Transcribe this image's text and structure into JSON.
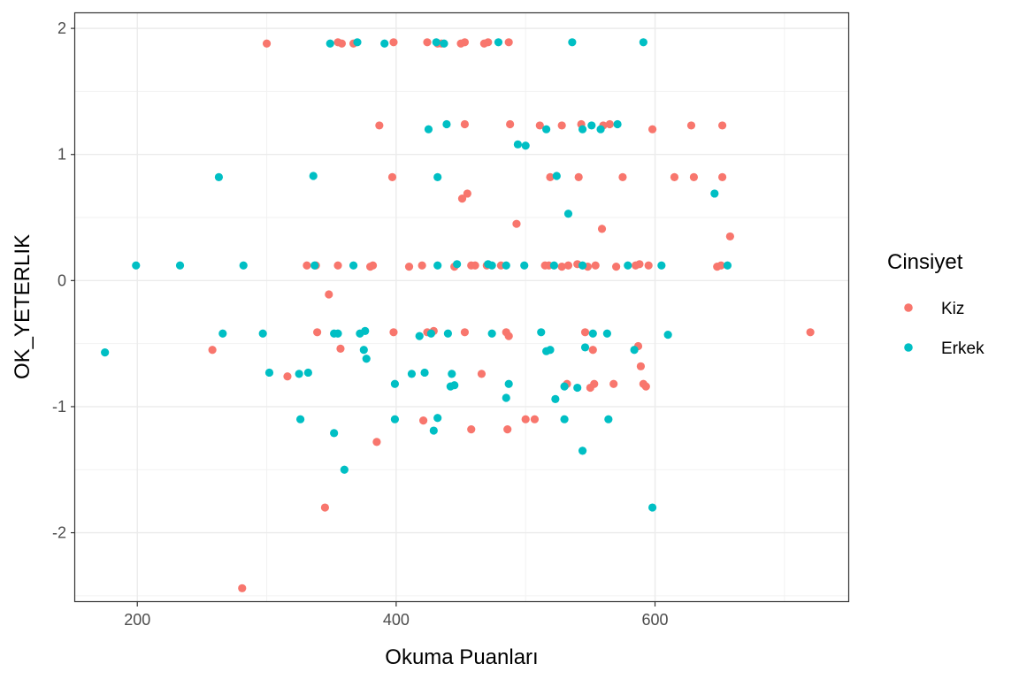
{
  "chart_data": {
    "type": "scatter",
    "title": "",
    "xlabel": "Okuma Puanları",
    "ylabel": "OK_YETERLIK",
    "xlim": [
      152,
      750
    ],
    "ylim": [
      -2.55,
      2.12
    ],
    "x_ticks": [
      200,
      400,
      600
    ],
    "x_tick_labels": [
      "200",
      "400",
      "600"
    ],
    "y_ticks": [
      -2,
      -1,
      0,
      1,
      2
    ],
    "y_tick_labels": [
      "-2",
      "-1",
      "0",
      "1",
      "2"
    ],
    "grid": true,
    "legend_title": "Cinsiyet",
    "legend_position": "right",
    "series": [
      {
        "name": "Kiz",
        "color": "#F8766D",
        "points": [
          [
            300,
            1.88
          ],
          [
            355,
            1.89
          ],
          [
            358,
            1.88
          ],
          [
            367,
            1.88
          ],
          [
            398,
            1.89
          ],
          [
            424,
            1.89
          ],
          [
            432,
            1.88
          ],
          [
            435,
            1.88
          ],
          [
            450,
            1.88
          ],
          [
            453,
            1.89
          ],
          [
            468,
            1.88
          ],
          [
            471,
            1.89
          ],
          [
            487,
            1.89
          ],
          [
            387,
            1.23
          ],
          [
            453,
            1.24
          ],
          [
            488,
            1.24
          ],
          [
            511,
            1.23
          ],
          [
            528,
            1.23
          ],
          [
            543,
            1.24
          ],
          [
            560,
            1.23
          ],
          [
            565,
            1.24
          ],
          [
            598,
            1.2
          ],
          [
            628,
            1.23
          ],
          [
            652,
            1.23
          ],
          [
            397,
            0.82
          ],
          [
            519,
            0.82
          ],
          [
            541,
            0.82
          ],
          [
            575,
            0.82
          ],
          [
            615,
            0.82
          ],
          [
            630,
            0.82
          ],
          [
            652,
            0.82
          ],
          [
            451,
            0.65
          ],
          [
            455,
            0.69
          ],
          [
            493,
            0.45
          ],
          [
            559,
            0.41
          ],
          [
            658,
            0.35
          ],
          [
            331,
            0.12
          ],
          [
            338,
            0.12
          ],
          [
            355,
            0.12
          ],
          [
            380,
            0.11
          ],
          [
            382,
            0.12
          ],
          [
            410,
            0.11
          ],
          [
            420,
            0.12
          ],
          [
            445,
            0.11
          ],
          [
            458,
            0.12
          ],
          [
            461,
            0.12
          ],
          [
            470,
            0.12
          ],
          [
            481,
            0.12
          ],
          [
            515,
            0.12
          ],
          [
            518,
            0.12
          ],
          [
            528,
            0.11
          ],
          [
            533,
            0.12
          ],
          [
            540,
            0.13
          ],
          [
            548,
            0.11
          ],
          [
            554,
            0.12
          ],
          [
            570,
            0.11
          ],
          [
            585,
            0.12
          ],
          [
            588,
            0.13
          ],
          [
            595,
            0.12
          ],
          [
            648,
            0.11
          ],
          [
            651,
            0.12
          ],
          [
            348,
            -0.11
          ],
          [
            339,
            -0.41
          ],
          [
            398,
            -0.41
          ],
          [
            424,
            -0.41
          ],
          [
            429,
            -0.4
          ],
          [
            453,
            -0.41
          ],
          [
            485,
            -0.41
          ],
          [
            487,
            -0.44
          ],
          [
            546,
            -0.41
          ],
          [
            720,
            -0.41
          ],
          [
            357,
            -0.54
          ],
          [
            258,
            -0.55
          ],
          [
            552,
            -0.55
          ],
          [
            587,
            -0.52
          ],
          [
            589,
            -0.68
          ],
          [
            316,
            -0.76
          ],
          [
            466,
            -0.74
          ],
          [
            532,
            -0.82
          ],
          [
            550,
            -0.85
          ],
          [
            553,
            -0.82
          ],
          [
            568,
            -0.82
          ],
          [
            591,
            -0.82
          ],
          [
            593,
            -0.84
          ],
          [
            421,
            -1.11
          ],
          [
            500,
            -1.1
          ],
          [
            507,
            -1.1
          ],
          [
            458,
            -1.18
          ],
          [
            486,
            -1.18
          ],
          [
            385,
            -1.28
          ],
          [
            345,
            -1.8
          ],
          [
            281,
            -2.44
          ]
        ]
      },
      {
        "name": "Erkek",
        "color": "#00BFC4",
        "points": [
          [
            349,
            1.88
          ],
          [
            370,
            1.89
          ],
          [
            391,
            1.88
          ],
          [
            431,
            1.89
          ],
          [
            437,
            1.88
          ],
          [
            479,
            1.89
          ],
          [
            536,
            1.89
          ],
          [
            591,
            1.89
          ],
          [
            425,
            1.2
          ],
          [
            439,
            1.24
          ],
          [
            516,
            1.2
          ],
          [
            544,
            1.2
          ],
          [
            551,
            1.23
          ],
          [
            558,
            1.2
          ],
          [
            571,
            1.24
          ],
          [
            494,
            1.08
          ],
          [
            500,
            1.07
          ],
          [
            263,
            0.82
          ],
          [
            336,
            0.83
          ],
          [
            432,
            0.82
          ],
          [
            524,
            0.83
          ],
          [
            646,
            0.69
          ],
          [
            533,
            0.53
          ],
          [
            199,
            0.12
          ],
          [
            233,
            0.12
          ],
          [
            282,
            0.12
          ],
          [
            337,
            0.12
          ],
          [
            367,
            0.12
          ],
          [
            432,
            0.12
          ],
          [
            447,
            0.13
          ],
          [
            471,
            0.13
          ],
          [
            474,
            0.12
          ],
          [
            485,
            0.12
          ],
          [
            499,
            0.12
          ],
          [
            522,
            0.12
          ],
          [
            544,
            0.12
          ],
          [
            579,
            0.12
          ],
          [
            605,
            0.12
          ],
          [
            656,
            0.12
          ],
          [
            266,
            -0.42
          ],
          [
            297,
            -0.42
          ],
          [
            352,
            -0.42
          ],
          [
            355,
            -0.42
          ],
          [
            372,
            -0.42
          ],
          [
            376,
            -0.4
          ],
          [
            418,
            -0.44
          ],
          [
            427,
            -0.42
          ],
          [
            440,
            -0.42
          ],
          [
            474,
            -0.42
          ],
          [
            512,
            -0.41
          ],
          [
            552,
            -0.42
          ],
          [
            563,
            -0.42
          ],
          [
            610,
            -0.43
          ],
          [
            175,
            -0.57
          ],
          [
            375,
            -0.55
          ],
          [
            377,
            -0.62
          ],
          [
            516,
            -0.56
          ],
          [
            519,
            -0.55
          ],
          [
            546,
            -0.53
          ],
          [
            584,
            -0.55
          ],
          [
            302,
            -0.73
          ],
          [
            325,
            -0.74
          ],
          [
            332,
            -0.73
          ],
          [
            412,
            -0.74
          ],
          [
            422,
            -0.73
          ],
          [
            443,
            -0.74
          ],
          [
            399,
            -0.82
          ],
          [
            442,
            -0.84
          ],
          [
            445,
            -0.83
          ],
          [
            487,
            -0.82
          ],
          [
            540,
            -0.85
          ],
          [
            530,
            -0.84
          ],
          [
            485,
            -0.93
          ],
          [
            523,
            -0.94
          ],
          [
            326,
            -1.1
          ],
          [
            399,
            -1.1
          ],
          [
            432,
            -1.09
          ],
          [
            530,
            -1.1
          ],
          [
            564,
            -1.1
          ],
          [
            352,
            -1.21
          ],
          [
            429,
            -1.19
          ],
          [
            544,
            -1.35
          ],
          [
            360,
            -1.5
          ],
          [
            598,
            -1.8
          ]
        ]
      }
    ]
  }
}
